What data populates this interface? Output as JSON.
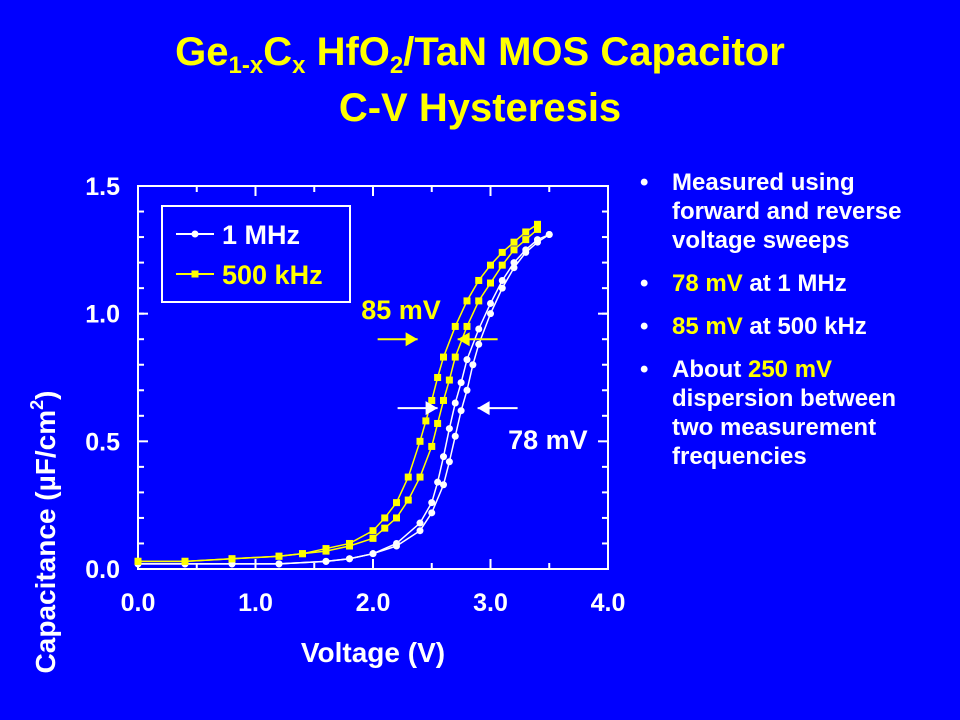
{
  "colors": {
    "background": "#0000FF",
    "accent": "#FFFF00",
    "text": "#FFFFFF"
  },
  "slide": {
    "title_line1": {
      "a": "Ge",
      "a_sub": "1-x",
      "b": "C",
      "b_sub": "x",
      "c": " HfO",
      "c_sub": "2",
      "d": "/TaN MOS Capacitor"
    },
    "title_line2": "C-V Hysteresis"
  },
  "bullets": [
    {
      "text": "Measured using forward and reverse voltage sweeps"
    },
    {
      "hl": "78 mV",
      "rest": " at 1 MHz"
    },
    {
      "hl": "85 mV",
      "rest": " at 500 kHz"
    },
    {
      "pre": "About ",
      "hl": "250 mV",
      "rest": " dispersion between two measurement frequencies"
    }
  ],
  "chart_data": {
    "type": "line",
    "xlabel": "Voltage (V)",
    "ylabel": "Capacitance (µF/cm",
    "ylabel_sup": "2",
    "ylabel_close": ")",
    "xlim": [
      0,
      4
    ],
    "ylim": [
      0,
      1.5
    ],
    "xticks": [
      "0.0",
      "1.0",
      "2.0",
      "3.0",
      "4.0"
    ],
    "yticks": [
      "0.0",
      "0.5",
      "1.0",
      "1.5"
    ],
    "grid": false,
    "legend_position": "top-left",
    "series": [
      {
        "name": "1 MHz",
        "color": "#FFFFFF",
        "marker": "circle",
        "sweeps": [
          {
            "x": [
              0.0,
              0.4,
              0.8,
              1.2,
              1.6,
              1.8,
              2.0,
              2.2,
              2.4,
              2.5,
              2.6,
              2.65,
              2.7,
              2.75,
              2.8,
              2.85,
              2.9,
              3.0,
              3.1,
              3.2,
              3.3,
              3.4,
              3.5
            ],
            "y": [
              0.02,
              0.02,
              0.02,
              0.02,
              0.03,
              0.04,
              0.06,
              0.09,
              0.15,
              0.22,
              0.33,
              0.42,
              0.52,
              0.62,
              0.7,
              0.8,
              0.88,
              1.0,
              1.1,
              1.18,
              1.24,
              1.28,
              1.31
            ]
          },
          {
            "x": [
              0.0,
              0.4,
              0.8,
              1.2,
              1.6,
              1.8,
              2.0,
              2.2,
              2.4,
              2.5,
              2.55,
              2.6,
              2.65,
              2.7,
              2.75,
              2.8,
              2.9,
              3.0,
              3.1,
              3.2,
              3.3,
              3.4,
              3.5
            ],
            "y": [
              0.02,
              0.02,
              0.02,
              0.02,
              0.03,
              0.04,
              0.06,
              0.1,
              0.18,
              0.26,
              0.34,
              0.44,
              0.55,
              0.65,
              0.73,
              0.82,
              0.94,
              1.04,
              1.13,
              1.2,
              1.25,
              1.29,
              1.31
            ]
          }
        ]
      },
      {
        "name": "500 kHz",
        "color": "#FFFF00",
        "marker": "square",
        "sweeps": [
          {
            "x": [
              0.0,
              0.4,
              0.8,
              1.2,
              1.4,
              1.6,
              1.8,
              2.0,
              2.1,
              2.2,
              2.3,
              2.4,
              2.5,
              2.55,
              2.6,
              2.65,
              2.7,
              2.8,
              2.9,
              3.0,
              3.1,
              3.2,
              3.3,
              3.4
            ],
            "y": [
              0.03,
              0.03,
              0.04,
              0.05,
              0.06,
              0.07,
              0.09,
              0.12,
              0.16,
              0.2,
              0.27,
              0.36,
              0.48,
              0.57,
              0.66,
              0.74,
              0.83,
              0.95,
              1.05,
              1.12,
              1.19,
              1.25,
              1.29,
              1.33
            ]
          },
          {
            "x": [
              0.0,
              0.4,
              0.8,
              1.2,
              1.4,
              1.6,
              1.8,
              2.0,
              2.1,
              2.2,
              2.3,
              2.4,
              2.45,
              2.5,
              2.55,
              2.6,
              2.7,
              2.8,
              2.9,
              3.0,
              3.1,
              3.2,
              3.3,
              3.4
            ],
            "y": [
              0.03,
              0.03,
              0.04,
              0.05,
              0.06,
              0.08,
              0.1,
              0.15,
              0.2,
              0.26,
              0.36,
              0.5,
              0.58,
              0.66,
              0.75,
              0.83,
              0.95,
              1.05,
              1.13,
              1.19,
              1.24,
              1.28,
              1.32,
              1.35
            ]
          }
        ]
      }
    ],
    "annotations": [
      {
        "label": "85 mV",
        "color": "#FFFF00",
        "x": 2.55,
        "y": 0.9,
        "label_at": {
          "x": 1.9,
          "y": 0.98
        }
      },
      {
        "label": "78 mV",
        "color": "#FFFFFF",
        "x": 2.72,
        "y": 0.63,
        "label_at": {
          "x": 3.15,
          "y": 0.47
        }
      }
    ]
  }
}
